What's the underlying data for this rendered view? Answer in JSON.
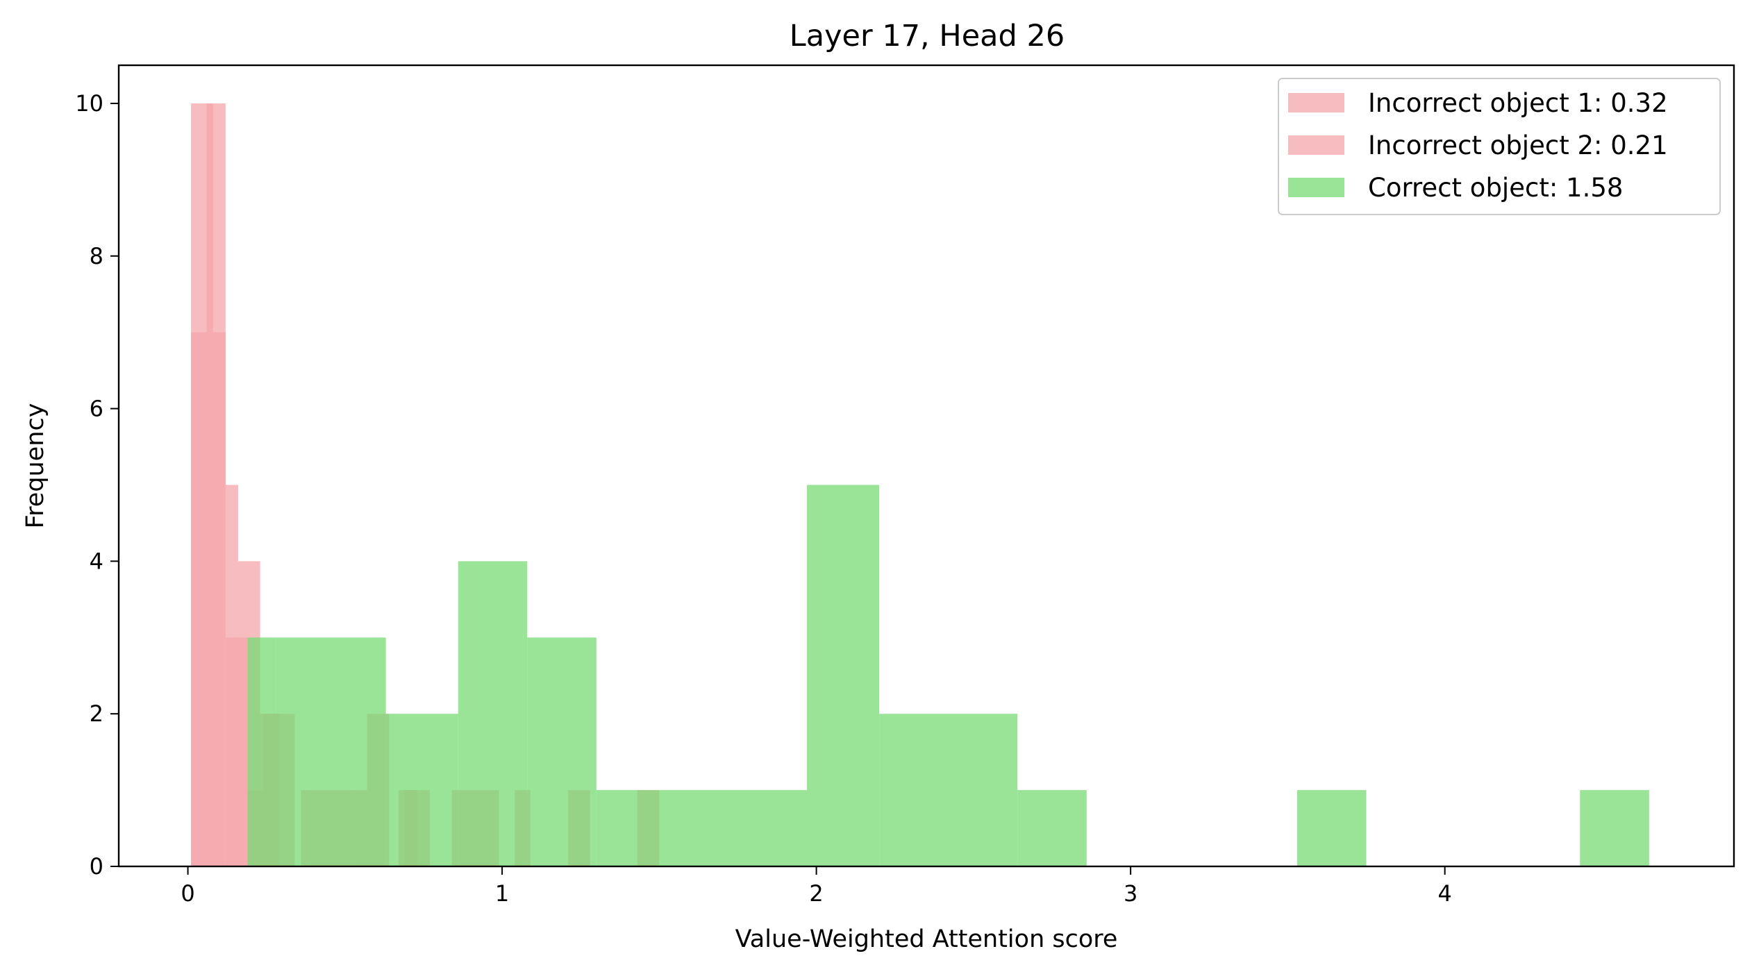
{
  "chart_data": {
    "type": "histogram",
    "title": "Layer 17, Head 26",
    "xlabel": "Value-Weighted Attention score",
    "ylabel": "Frequency",
    "xlim": [
      -0.22,
      4.92
    ],
    "ylim": [
      0,
      10.5
    ],
    "xticks": [
      0,
      1,
      2,
      3,
      4
    ],
    "yticks": [
      0,
      2,
      4,
      6,
      8,
      10
    ],
    "grid": false,
    "legend_position": "top-right",
    "series": [
      {
        "name": "Incorrect object 1: 0.32",
        "color": "#f4a6aa",
        "opacity": 0.75,
        "bins": [
          {
            "x0": 0.01,
            "x1": 0.12,
            "count": 10
          },
          {
            "x0": 0.12,
            "x1": 0.16,
            "count": 5
          },
          {
            "x0": 0.16,
            "x1": 0.23,
            "count": 4
          },
          {
            "x0": 0.23,
            "x1": 0.34,
            "count": 2
          },
          {
            "x0": 0.39,
            "x1": 0.52,
            "count": 1
          },
          {
            "x0": 0.52,
            "x1": 0.57,
            "count": 1
          },
          {
            "x0": 0.57,
            "x1": 0.64,
            "count": 2
          },
          {
            "x0": 0.67,
            "x1": 0.77,
            "count": 1
          },
          {
            "x0": 0.84,
            "x1": 0.99,
            "count": 1
          },
          {
            "x0": 1.04,
            "x1": 1.09,
            "count": 1
          },
          {
            "x0": 1.21,
            "x1": 1.28,
            "count": 1
          },
          {
            "x0": 1.43,
            "x1": 1.5,
            "count": 1
          }
        ]
      },
      {
        "name": "Incorrect object 2: 0.21",
        "color": "#f4a6aa",
        "opacity": 0.75,
        "bins": [
          {
            "x0": 0.01,
            "x1": 0.06,
            "count": 7
          },
          {
            "x0": 0.06,
            "x1": 0.08,
            "count": 10
          },
          {
            "x0": 0.08,
            "x1": 0.12,
            "count": 7
          },
          {
            "x0": 0.12,
            "x1": 0.19,
            "count": 3
          },
          {
            "x0": 0.19,
            "x1": 0.24,
            "count": 1
          },
          {
            "x0": 0.24,
            "x1": 0.29,
            "count": 2
          },
          {
            "x0": 0.36,
            "x1": 0.39,
            "count": 1
          },
          {
            "x0": 0.69,
            "x1": 0.73,
            "count": 1
          }
        ]
      },
      {
        "name": "Correct object: 1.58",
        "color": "#77db73",
        "opacity": 0.75,
        "bins": [
          {
            "x0": 0.19,
            "x1": 0.28,
            "count": 3
          },
          {
            "x0": 0.28,
            "x1": 0.63,
            "count": 3
          },
          {
            "x0": 0.63,
            "x1": 0.86,
            "count": 2
          },
          {
            "x0": 0.86,
            "x1": 1.08,
            "count": 4
          },
          {
            "x0": 1.08,
            "x1": 1.3,
            "count": 3
          },
          {
            "x0": 1.3,
            "x1": 1.97,
            "count": 1
          },
          {
            "x0": 1.97,
            "x1": 2.2,
            "count": 5
          },
          {
            "x0": 2.2,
            "x1": 2.64,
            "count": 2
          },
          {
            "x0": 2.64,
            "x1": 2.86,
            "count": 1
          },
          {
            "x0": 3.53,
            "x1": 3.75,
            "count": 1
          },
          {
            "x0": 4.43,
            "x1": 4.65,
            "count": 1
          }
        ]
      }
    ]
  }
}
